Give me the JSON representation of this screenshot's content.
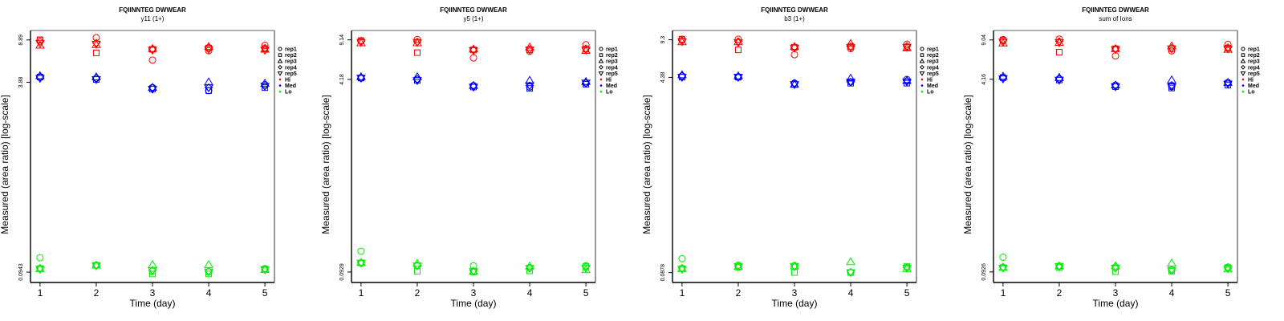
{
  "colors": {
    "Hi": "#ff0000",
    "Med": "#0000ff",
    "Lo": "#00ee00",
    "frame": "#000000",
    "frame_light": "#808080"
  },
  "legend": {
    "items": [
      {
        "label": "rep1",
        "symbol": "circle"
      },
      {
        "label": "rep2",
        "symbol": "square"
      },
      {
        "label": "rep3",
        "symbol": "triangle-up"
      },
      {
        "label": "rep4",
        "symbol": "diamond"
      },
      {
        "label": "rep5",
        "symbol": "triangle-down"
      },
      {
        "label": "Hi",
        "symbol": "dot",
        "color_key": "Hi"
      },
      {
        "label": "Med",
        "symbol": "dot",
        "color_key": "Med"
      },
      {
        "label": "Lo",
        "symbol": "dot",
        "color_key": "Lo"
      }
    ]
  },
  "chart_data": [
    {
      "type": "scatter",
      "title": "FQIINNTEG DWWEAR",
      "subtitle": "y11 (1+)",
      "xlabel": "Time (day)",
      "ylabel": "Measured (area ratio) [log-scale]",
      "yscale": "log",
      "x_ticks": [
        "1",
        "2",
        "3",
        "4",
        "5"
      ],
      "y_ticks": [
        {
          "value": 8.89,
          "label": "8.89"
        },
        {
          "value": 3.88,
          "label": "3.88"
        },
        {
          "value": 0.0943,
          "label": "0.0943"
        }
      ],
      "ylim": [
        0.077,
        10.7
      ],
      "xlim": [
        0.83,
        5.17
      ],
      "legend_position": "right",
      "series": [
        {
          "name": "Hi",
          "reps": {
            "rep1": [
              8.9,
              9.3,
              6.0,
              7.2,
              8.0
            ],
            "rep2": [
              8.9,
              6.9,
              7.4,
              7.6,
              7.5
            ],
            "rep3": [
              8.0,
              8.1,
              7.5,
              7.8,
              7.4
            ],
            "rep4": [
              8.6,
              8.4,
              7.4,
              7.6,
              7.6
            ],
            "rep5": [
              8.3,
              8.2,
              7.3,
              7.4,
              7.3
            ]
          }
        },
        {
          "name": "Med",
          "reps": {
            "rep1": [
              4.3,
              4.2,
              3.5,
              3.3,
              3.7
            ],
            "rep2": [
              4.3,
              4.1,
              3.4,
              3.3,
              3.5
            ],
            "rep3": [
              4.4,
              4.3,
              3.5,
              3.9,
              3.8
            ],
            "rep4": [
              4.3,
              4.2,
              3.5,
              3.5,
              3.6
            ],
            "rep5": [
              4.2,
              4.1,
              3.4,
              3.5,
              3.6
            ]
          }
        },
        {
          "name": "Lo",
          "reps": {
            "rep1": [
              0.125,
              0.108,
              0.096,
              0.095,
              0.101
            ],
            "rep2": [
              0.101,
              0.108,
              0.091,
              0.091,
              0.1
            ],
            "rep3": [
              0.101,
              0.108,
              0.109,
              0.109,
              0.099
            ],
            "rep4": [
              0.102,
              0.107,
              0.098,
              0.096,
              0.1
            ],
            "rep5": [
              0.1,
              0.107,
              0.097,
              0.095,
              0.099
            ]
          }
        }
      ]
    },
    {
      "type": "scatter",
      "title": "FQIINNTEG DWWEAR",
      "subtitle": "y5 (1+)",
      "xlabel": "Time (day)",
      "ylabel": "Measured (area ratio) [log-scale]",
      "yscale": "log",
      "x_ticks": [
        "1",
        "2",
        "3",
        "4",
        "5"
      ],
      "y_ticks": [
        {
          "value": 9.14,
          "label": "9.14"
        },
        {
          "value": 4.18,
          "label": "4.18"
        },
        {
          "value": 0.0929,
          "label": "0.0929"
        }
      ],
      "ylim": [
        0.0755,
        11.0
      ],
      "xlim": [
        0.83,
        5.17
      ],
      "legend_position": "right",
      "series": [
        {
          "name": "Hi",
          "reps": {
            "rep1": [
              9.0,
              9.2,
              6.4,
              7.3,
              8.3
            ],
            "rep2": [
              9.0,
              7.1,
              7.5,
              7.5,
              7.6
            ],
            "rep3": [
              8.6,
              8.6,
              7.6,
              7.9,
              7.4
            ],
            "rep4": [
              8.9,
              8.8,
              7.5,
              7.6,
              7.7
            ],
            "rep5": [
              8.7,
              8.7,
              7.4,
              7.5,
              7.5
            ]
          }
        },
        {
          "name": "Med",
          "reps": {
            "rep1": [
              4.3,
              4.2,
              3.7,
              3.6,
              3.9
            ],
            "rep2": [
              4.3,
              4.1,
              3.6,
              3.5,
              3.8
            ],
            "rep3": [
              4.4,
              4.4,
              3.7,
              4.1,
              4.0
            ],
            "rep4": [
              4.3,
              4.2,
              3.7,
              3.7,
              3.9
            ],
            "rep5": [
              4.3,
              4.1,
              3.6,
              3.7,
              3.9
            ]
          }
        },
        {
          "name": "Lo",
          "reps": {
            "rep1": [
              0.14,
              0.105,
              0.105,
              0.101,
              0.105
            ],
            "rep2": [
              0.111,
              0.094,
              0.093,
              0.095,
              0.104
            ],
            "rep3": [
              0.112,
              0.11,
              0.094,
              0.104,
              0.097
            ],
            "rep4": [
              0.112,
              0.106,
              0.095,
              0.1,
              0.103
            ],
            "rep5": [
              0.111,
              0.105,
              0.094,
              0.1,
              0.1
            ]
          }
        }
      ]
    },
    {
      "type": "scatter",
      "title": "FQIINNTEG DWWEAR",
      "subtitle": "b3 (1+)",
      "xlabel": "Time (day)",
      "ylabel": "Measured (area ratio) [log-scale]",
      "yscale": "log",
      "x_ticks": [
        "1",
        "2",
        "3",
        "4",
        "5"
      ],
      "y_ticks": [
        {
          "value": 9.3,
          "label": "9.3"
        },
        {
          "value": 4.38,
          "label": "4.38"
        },
        {
          "value": 0.0878,
          "label": "0.0878"
        }
      ],
      "ylim": [
        0.072,
        11.2
      ],
      "xlim": [
        0.83,
        5.17
      ],
      "legend_position": "right",
      "series": [
        {
          "name": "Hi",
          "reps": {
            "rep1": [
              9.4,
              9.4,
              6.9,
              7.8,
              8.5
            ],
            "rep2": [
              9.4,
              7.6,
              8.0,
              8.1,
              8.0
            ],
            "rep3": [
              8.9,
              8.9,
              8.1,
              8.6,
              7.9
            ],
            "rep4": [
              9.2,
              9.0,
              8.0,
              8.1,
              8.2
            ],
            "rep5": [
              9.0,
              8.8,
              7.9,
              8.0,
              8.0
            ]
          }
        },
        {
          "name": "Med",
          "reps": {
            "rep1": [
              4.5,
              4.4,
              3.9,
              4.0,
              4.2
            ],
            "rep2": [
              4.4,
              4.4,
              3.8,
              3.9,
              3.9
            ],
            "rep3": [
              4.6,
              4.5,
              3.8,
              4.3,
              4.1
            ],
            "rep4": [
              4.5,
              4.4,
              3.9,
              4.0,
              4.1
            ],
            "rep5": [
              4.4,
              4.4,
              3.8,
              4.0,
              4.0
            ]
          }
        },
        {
          "name": "Lo",
          "reps": {
            "rep1": [
              0.116,
              0.102,
              0.101,
              0.088,
              0.098
            ],
            "rep2": [
              0.095,
              0.098,
              0.088,
              0.088,
              0.099
            ],
            "rep3": [
              0.095,
              0.099,
              0.1,
              0.109,
              0.095
            ],
            "rep4": [
              0.096,
              0.1,
              0.1,
              0.089,
              0.097
            ],
            "rep5": [
              0.094,
              0.099,
              0.099,
              0.088,
              0.096
            ]
          }
        }
      ]
    },
    {
      "type": "scatter",
      "title": "FQIINNTEG DWWEAR",
      "subtitle": "sum of Ions",
      "xlabel": "Time (day)",
      "ylabel": "Measured (area ratio) [log-scale]",
      "yscale": "log",
      "x_ticks": [
        "1",
        "2",
        "3",
        "4",
        "5"
      ],
      "y_ticks": [
        {
          "value": 9.04,
          "label": "9.04"
        },
        {
          "value": 4.16,
          "label": "4.16"
        },
        {
          "value": 0.0926,
          "label": "0.0926"
        }
      ],
      "ylim": [
        0.0752,
        10.9
      ],
      "xlim": [
        0.83,
        5.17
      ],
      "legend_position": "right",
      "series": [
        {
          "name": "Hi",
          "reps": {
            "rep1": [
              9.1,
              9.2,
              6.6,
              7.3,
              8.3
            ],
            "rep2": [
              9.0,
              7.1,
              7.6,
              7.6,
              7.7
            ],
            "rep3": [
              8.5,
              8.6,
              7.6,
              8.0,
              7.5
            ],
            "rep4": [
              8.9,
              8.8,
              7.6,
              7.7,
              7.8
            ],
            "rep5": [
              8.7,
              8.6,
              7.5,
              7.6,
              7.6
            ]
          }
        },
        {
          "name": "Med",
          "reps": {
            "rep1": [
              4.3,
              4.2,
              3.7,
              3.6,
              3.9
            ],
            "rep2": [
              4.3,
              4.1,
              3.6,
              3.5,
              3.7
            ],
            "rep3": [
              4.4,
              4.3,
              3.7,
              4.1,
              3.9
            ],
            "rep4": [
              4.3,
              4.2,
              3.7,
              3.7,
              3.9
            ],
            "rep5": [
              4.2,
              4.1,
              3.6,
              3.6,
              3.8
            ]
          }
        },
        {
          "name": "Lo",
          "reps": {
            "rep1": [
              0.124,
              0.104,
              0.102,
              0.096,
              0.102
            ],
            "rep2": [
              0.101,
              0.101,
              0.093,
              0.094,
              0.101
            ],
            "rep3": [
              0.101,
              0.104,
              0.104,
              0.11,
              0.098
            ],
            "rep4": [
              0.102,
              0.104,
              0.1,
              0.097,
              0.1
            ],
            "rep5": [
              0.1,
              0.103,
              0.1,
              0.096,
              0.099
            ]
          }
        }
      ]
    }
  ]
}
